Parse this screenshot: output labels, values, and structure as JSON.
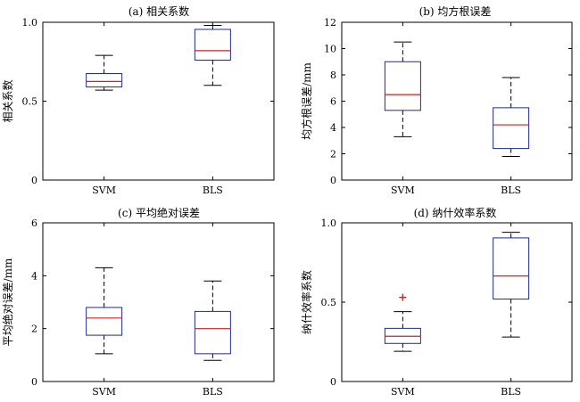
{
  "chart_data": [
    {
      "type": "box",
      "title": "(a) 相关系数",
      "ylabel": "相关系数",
      "xlabel": "",
      "ylim": [
        0,
        1
      ],
      "yticks": [
        0,
        0.5,
        1.0
      ],
      "ytick_labels": [
        "0",
        "0.5",
        "1.0"
      ],
      "categories": [
        "SVM",
        "BLS"
      ],
      "boxes": [
        {
          "category": "SVM",
          "whisker_low": 0.57,
          "q1": 0.59,
          "median": 0.625,
          "q3": 0.675,
          "whisker_high": 0.79,
          "outliers": []
        },
        {
          "category": "BLS",
          "whisker_low": 0.6,
          "q1": 0.76,
          "median": 0.82,
          "q3": 0.955,
          "whisker_high": 0.98,
          "outliers": []
        }
      ]
    },
    {
      "type": "box",
      "title": "(b) 均方根误差",
      "ylabel": "均方根误差/mm",
      "xlabel": "",
      "ylim": [
        0,
        12
      ],
      "yticks": [
        0,
        2,
        4,
        6,
        8,
        10,
        12
      ],
      "ytick_labels": [
        "0",
        "2",
        "4",
        "6",
        "8",
        "10",
        "12"
      ],
      "categories": [
        "SVM",
        "BLS"
      ],
      "boxes": [
        {
          "category": "SVM",
          "whisker_low": 3.3,
          "q1": 5.3,
          "median": 6.5,
          "q3": 9.0,
          "whisker_high": 10.5,
          "outliers": []
        },
        {
          "category": "BLS",
          "whisker_low": 1.8,
          "q1": 2.4,
          "median": 4.2,
          "q3": 5.5,
          "whisker_high": 7.8,
          "outliers": []
        }
      ]
    },
    {
      "type": "box",
      "title": "(c) 平均绝对误差",
      "ylabel": "平均绝对误差/mm",
      "xlabel": "",
      "ylim": [
        0,
        6
      ],
      "yticks": [
        0,
        2,
        4,
        6
      ],
      "ytick_labels": [
        "0",
        "2",
        "4",
        "6"
      ],
      "categories": [
        "SVM",
        "BLS"
      ],
      "boxes": [
        {
          "category": "SVM",
          "whisker_low": 1.05,
          "q1": 1.75,
          "median": 2.4,
          "q3": 2.8,
          "whisker_high": 4.3,
          "outliers": []
        },
        {
          "category": "BLS",
          "whisker_low": 0.8,
          "q1": 1.05,
          "median": 2.0,
          "q3": 2.65,
          "whisker_high": 3.8,
          "outliers": []
        }
      ]
    },
    {
      "type": "box",
      "title": "(d) 纳什效率系数",
      "ylabel": "纳什效率系数",
      "xlabel": "",
      "ylim": [
        0,
        1
      ],
      "yticks": [
        0,
        0.5,
        1.0
      ],
      "ytick_labels": [
        "0",
        "0.5",
        "1.0"
      ],
      "categories": [
        "SVM",
        "BLS"
      ],
      "boxes": [
        {
          "category": "SVM",
          "whisker_low": 0.19,
          "q1": 0.24,
          "median": 0.285,
          "q3": 0.335,
          "whisker_high": 0.44,
          "outliers": [
            0.53
          ]
        },
        {
          "category": "BLS",
          "whisker_low": 0.28,
          "q1": 0.52,
          "median": 0.665,
          "q3": 0.905,
          "whisker_high": 0.94,
          "outliers": []
        }
      ]
    }
  ],
  "colors": {
    "box": "#1f2a8a",
    "median": "#cc2222",
    "whisker": "#000000",
    "outlier": "#dd2222",
    "axis": "#000000"
  }
}
